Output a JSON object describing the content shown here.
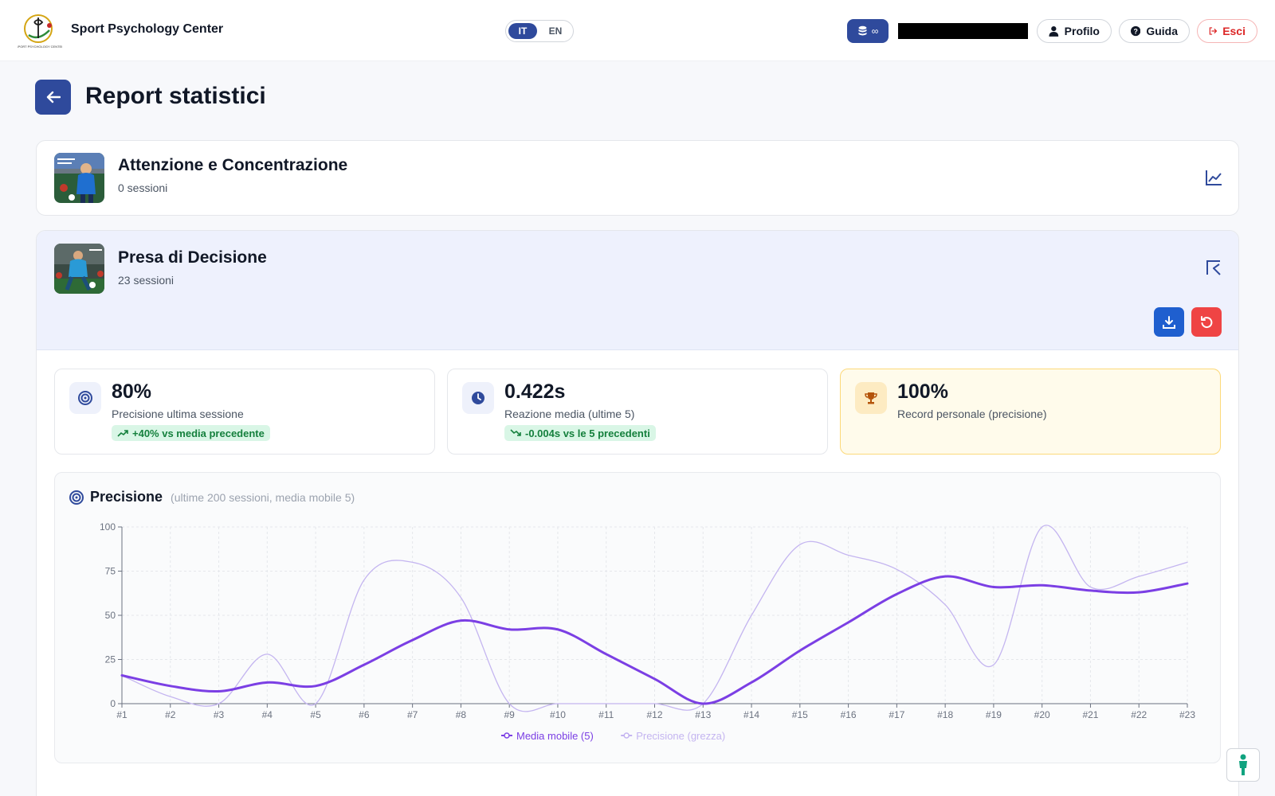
{
  "header": {
    "brand": "Sport Psychology Center",
    "lang_active": "IT",
    "lang_inactive": "EN",
    "credits": "∞",
    "profile_label": "Profilo",
    "guide_label": "Guida",
    "logout_label": "Esci"
  },
  "page": {
    "title": "Report statistici"
  },
  "games": [
    {
      "title": "Attenzione e Concentrazione",
      "sessions": "0 sessioni"
    },
    {
      "title": "Presa di Decisione",
      "sessions": "23 sessioni"
    }
  ],
  "stats": [
    {
      "value": "80%",
      "label": "Precisione ultima sessione",
      "delta": "+40% vs media precedente"
    },
    {
      "value": "0.422s",
      "label": "Reazione media (ultime 5)",
      "delta": "-0.004s vs le 5 precedenti"
    },
    {
      "value": "100%",
      "label": "Record personale (precisione)"
    }
  ],
  "chart": {
    "title": "Precisione",
    "subtitle": "(ultime 200 sessioni, media mobile 5)"
  },
  "colors": {
    "primary": "#2f4a9c",
    "moving_avg": "#7b3fe4",
    "raw": "#c4b5f0",
    "danger": "#ef4444",
    "success": "#15803d"
  },
  "chart_data": {
    "type": "line",
    "x": [
      "#1",
      "#2",
      "#3",
      "#4",
      "#5",
      "#6",
      "#7",
      "#8",
      "#9",
      "#10",
      "#11",
      "#12",
      "#13",
      "#14",
      "#15",
      "#16",
      "#17",
      "#18",
      "#19",
      "#20",
      "#21",
      "#22",
      "#23"
    ],
    "series": [
      {
        "name": "Media mobile (5)",
        "values": [
          16,
          10,
          7,
          12,
          10,
          22,
          36,
          47,
          42,
          42,
          28,
          14,
          0,
          12,
          30,
          46,
          62,
          72,
          66,
          67,
          64,
          63,
          68
        ]
      },
      {
        "name": "Precisione (grezza)",
        "values": [
          16,
          4,
          0,
          28,
          0,
          70,
          80,
          60,
          0,
          0,
          0,
          0,
          0,
          50,
          90,
          84,
          76,
          56,
          22,
          100,
          66,
          72,
          80
        ]
      }
    ],
    "ylim": [
      0,
      100
    ],
    "yticks": [
      0,
      25,
      50,
      75,
      100
    ],
    "grid": true,
    "legend": "bottom"
  }
}
